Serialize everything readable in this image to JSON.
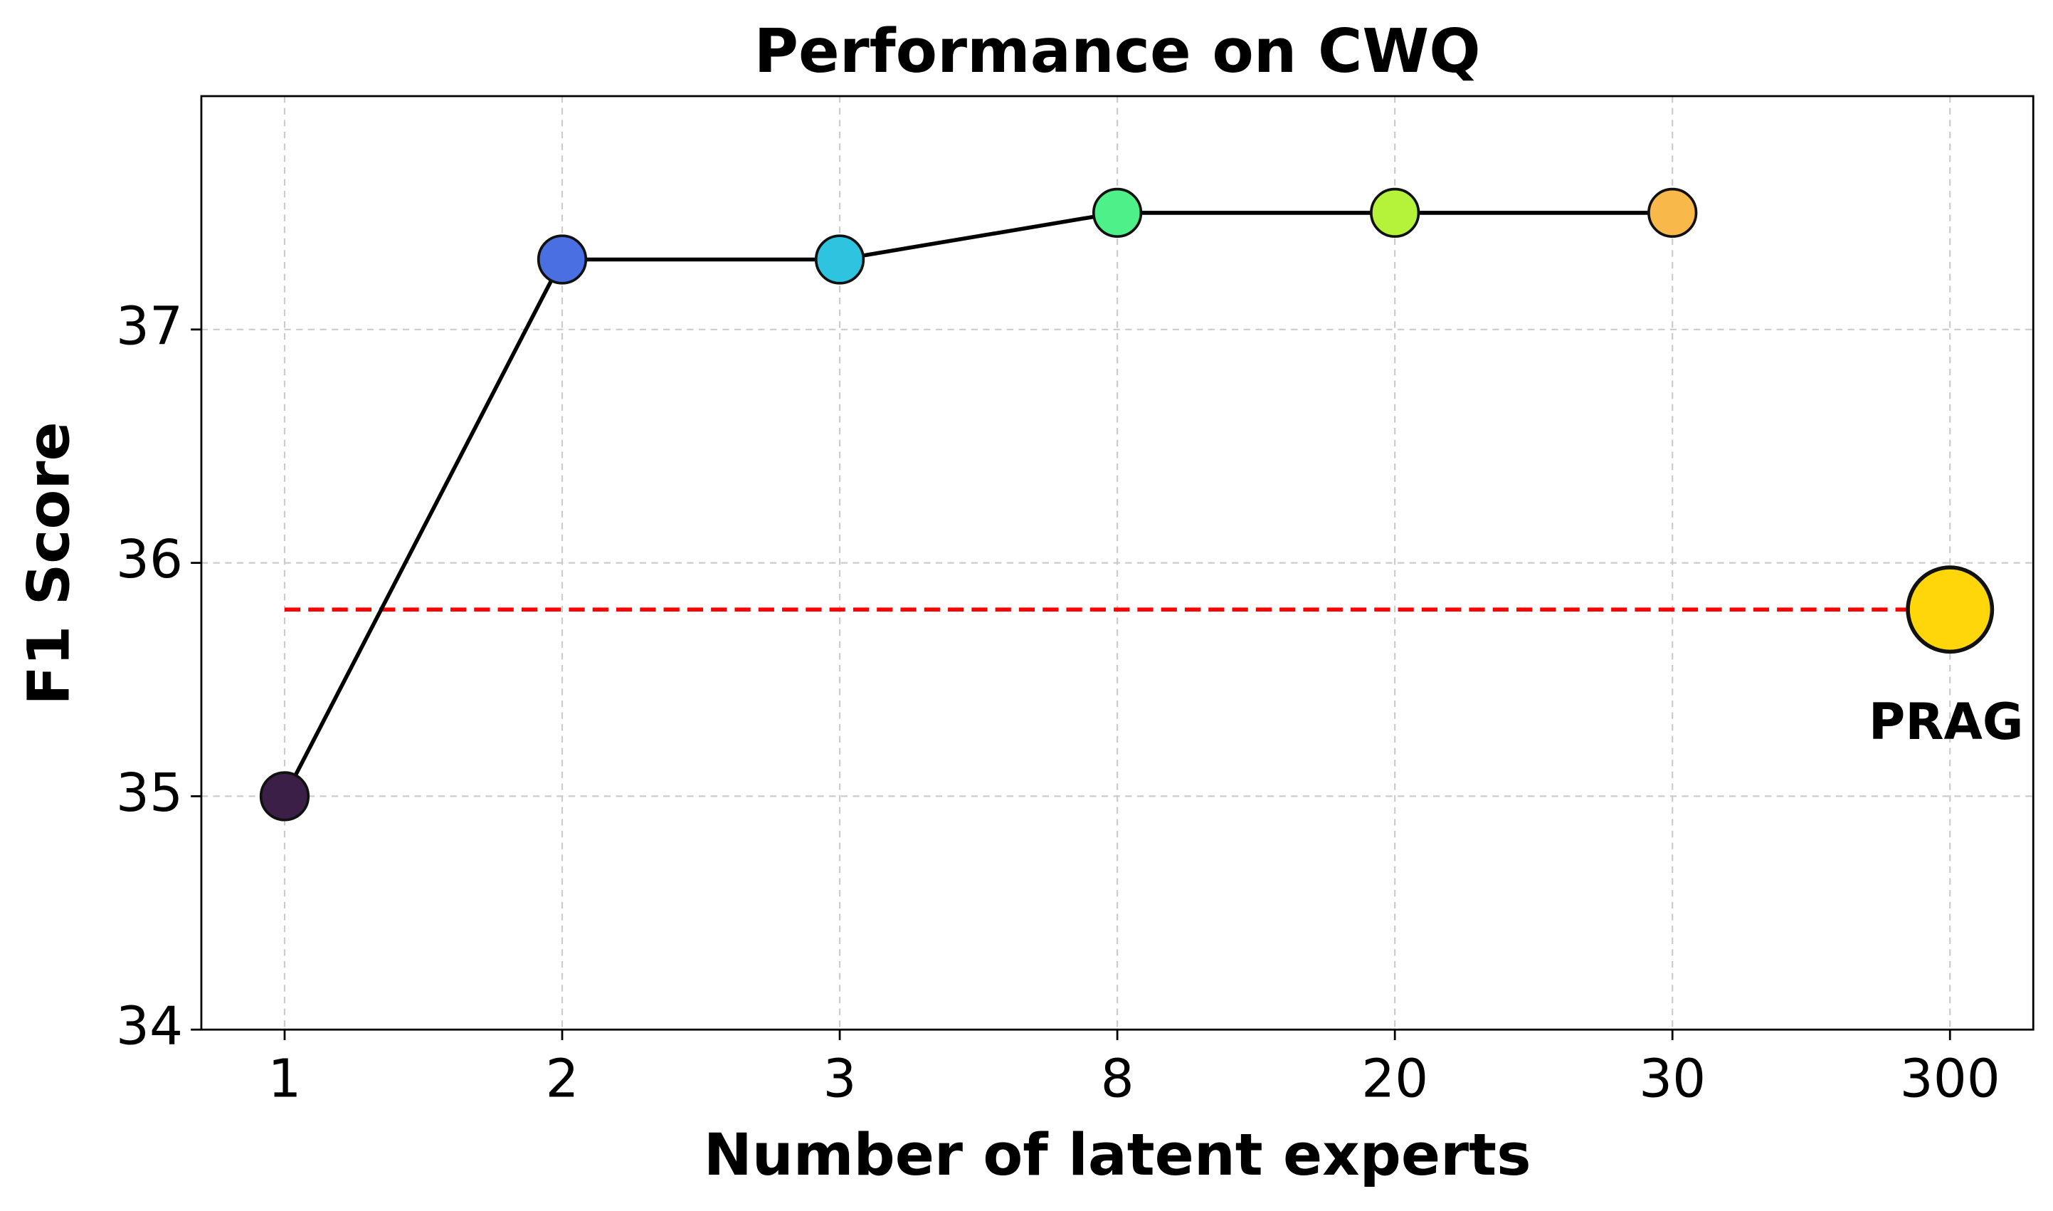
{
  "chart_data": {
    "type": "line",
    "title": "Performance on CWQ",
    "x_label": "Number of latent experts",
    "y_label": "F1 Score",
    "categories": [
      "1",
      "2",
      "3",
      "8",
      "20",
      "30",
      "300"
    ],
    "series": [
      {
        "name": "latent experts",
        "color": "#000000",
        "values": [
          35.0,
          37.3,
          37.3,
          37.5,
          37.5,
          37.5,
          null
        ],
        "marker_colors": [
          "#3b1f47",
          "#4a6fe3",
          "#2ec4e0",
          "#4ef08a",
          "#b5f23a",
          "#f8b84a",
          null
        ]
      }
    ],
    "baseline": {
      "name": "PRAG",
      "value": 35.8,
      "color": "#ff0000",
      "marker_color": "#ffd60a"
    },
    "ylim": [
      34,
      38
    ],
    "yticks": [
      34,
      35,
      36,
      37
    ],
    "grid": true
  }
}
